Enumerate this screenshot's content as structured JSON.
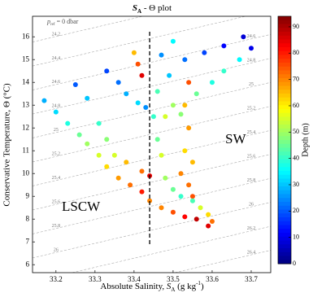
{
  "chart_data": {
    "type": "scatter",
    "title": {
      "symbol": "S",
      "subscript": "A",
      "rest": " - Θ plot"
    },
    "x_label": {
      "text": "Absolute Salinity, ",
      "symbol": "S",
      "subscript": "A",
      "unit": " (g kg",
      "superscript": "-1",
      "close": ")"
    },
    "y_label": "Conservative Temperature, Θ (°C)",
    "colorbar_label": "Depth (m)",
    "pref_label": {
      "symbol": "p",
      "subscript": "ref",
      "rest": " = 0 dbar"
    },
    "annotations": [
      "LSCW",
      "SW"
    ],
    "divider_x": 33.44,
    "divider_ylim": [
      6.9,
      16.3
    ],
    "isopycnals": [
      24.2,
      24.4,
      24.6,
      24.8,
      25,
      25.2,
      25.4,
      25.6,
      25.8,
      26,
      26.2,
      26.4
    ],
    "xlim": [
      33.14,
      33.75
    ],
    "ylim": [
      5.65,
      16.9
    ],
    "xticks": [
      33.2,
      33.3,
      33.4,
      33.5,
      33.6,
      33.7
    ],
    "yticks": [
      6,
      7,
      8,
      9,
      10,
      11,
      12,
      13,
      14,
      15,
      16
    ],
    "clim": [
      0,
      94
    ],
    "cticks": [
      0,
      10,
      20,
      30,
      40,
      50,
      60,
      70,
      80,
      90
    ],
    "colormap": "jet",
    "x": [
      33.17,
      33.2,
      33.23,
      33.26,
      33.28,
      33.31,
      33.33,
      33.36,
      33.39,
      33.42,
      33.25,
      33.28,
      33.31,
      33.33,
      33.35,
      33.38,
      33.33,
      33.36,
      33.38,
      33.41,
      33.43,
      33.4,
      33.41,
      33.42,
      33.53,
      33.58,
      33.63,
      33.68,
      33.7,
      33.67,
      33.63,
      33.6,
      33.56,
      33.5,
      33.48,
      33.54,
      33.53,
      33.54,
      33.53,
      33.52,
      33.54,
      33.55,
      33.48,
      33.5,
      33.52,
      33.55,
      33.57,
      33.59,
      33.6,
      33.59,
      33.47,
      33.5,
      33.53,
      33.56,
      33.44,
      33.42,
      33.45,
      33.46,
      33.47,
      33.47,
      33.49,
      33.5,
      33.46,
      33.52,
      33.44,
      33.55
    ],
    "y": [
      13.2,
      12.7,
      12.2,
      11.7,
      11.3,
      10.8,
      10.3,
      9.8,
      9.5,
      9.2,
      13.9,
      13.3,
      12.2,
      11.5,
      10.8,
      10.5,
      14.5,
      14.0,
      13.5,
      13.1,
      12.9,
      15.3,
      14.8,
      14.3,
      15.0,
      15.3,
      15.6,
      16.0,
      15.5,
      15.0,
      14.5,
      14.0,
      13.5,
      13.0,
      12.5,
      14.0,
      13.0,
      12.0,
      11.0,
      10.0,
      9.5,
      9.0,
      9.8,
      9.3,
      9.0,
      8.8,
      8.5,
      8.2,
      7.9,
      7.7,
      8.5,
      8.3,
      8.1,
      8.0,
      9.9,
      10.1,
      12.5,
      11.5,
      10.8,
      15.2,
      14.3,
      15.8,
      13.6,
      12.6,
      8.8,
      10.5
    ],
    "depth": [
      28,
      32,
      38,
      45,
      50,
      55,
      62,
      68,
      72,
      80,
      20,
      30,
      40,
      48,
      55,
      65,
      18,
      22,
      28,
      32,
      25,
      65,
      75,
      85,
      22,
      18,
      12,
      8,
      10,
      35,
      40,
      38,
      45,
      50,
      55,
      75,
      65,
      68,
      62,
      70,
      72,
      75,
      50,
      45,
      40,
      42,
      55,
      62,
      72,
      85,
      70,
      75,
      82,
      88,
      85,
      72,
      40,
      45,
      55,
      25,
      30,
      35,
      42,
      48,
      70,
      65
    ]
  }
}
